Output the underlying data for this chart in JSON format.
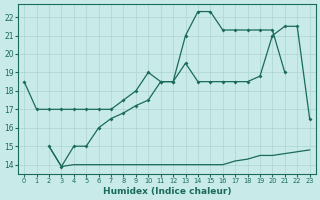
{
  "xlabel": "Humidex (Indice chaleur)",
  "background_color": "#c8eae8",
  "grid_color": "#aed4d0",
  "line_color": "#1a6b5a",
  "xlim": [
    -0.5,
    23.5
  ],
  "ylim": [
    13.5,
    22.7
  ],
  "xticks": [
    0,
    1,
    2,
    3,
    4,
    5,
    6,
    7,
    8,
    9,
    10,
    11,
    12,
    13,
    14,
    15,
    16,
    17,
    18,
    19,
    20,
    21,
    22,
    23
  ],
  "yticks": [
    14,
    15,
    16,
    17,
    18,
    19,
    20,
    21,
    22
  ],
  "line1_x": [
    0,
    1,
    2,
    3,
    4,
    5,
    6,
    7,
    8,
    9,
    10,
    11,
    12,
    13,
    14,
    15,
    16,
    17,
    18,
    19,
    20,
    21
  ],
  "line1_y": [
    18.5,
    17.0,
    17.0,
    17.0,
    17.0,
    17.0,
    17.0,
    17.0,
    17.5,
    18.0,
    19.0,
    18.5,
    18.5,
    21.0,
    22.3,
    22.3,
    21.3,
    21.3,
    21.3,
    21.3,
    21.3,
    19.0
  ],
  "line2_x": [
    2,
    3,
    4,
    5,
    6,
    7,
    8,
    9,
    10,
    11,
    12,
    13,
    14,
    15,
    16,
    17,
    18,
    19,
    20,
    21,
    22,
    23
  ],
  "line2_y": [
    15.0,
    13.9,
    15.0,
    15.0,
    16.0,
    16.5,
    16.8,
    17.2,
    17.5,
    18.5,
    18.5,
    19.5,
    18.5,
    18.5,
    18.5,
    18.5,
    18.5,
    18.8,
    21.0,
    21.5,
    21.5,
    16.5
  ],
  "line3_x": [
    2,
    3,
    4,
    5,
    6,
    7,
    8,
    9,
    10,
    11,
    12,
    13,
    14,
    15,
    16,
    17,
    18,
    19,
    20,
    21,
    22,
    23
  ],
  "line3_y": [
    15.0,
    13.9,
    14.0,
    14.0,
    14.0,
    14.0,
    14.0,
    14.0,
    14.0,
    14.0,
    14.0,
    14.0,
    14.0,
    14.0,
    14.0,
    14.2,
    14.3,
    14.5,
    14.5,
    14.6,
    14.7,
    14.8
  ]
}
